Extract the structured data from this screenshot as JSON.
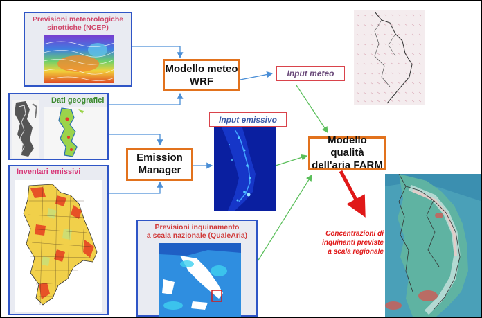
{
  "panels": {
    "ncep_title": "Previsioni meteorologiche\nsinottiche (NCEP)",
    "geo_title": "Dati geografici",
    "inventory_title": "Inventari emissivi",
    "qualearia_title": "Previsioni inquinamento\na scala nazionale (QualeAria)"
  },
  "boxes": {
    "wrf": "Modello meteo\nWRF",
    "emission_manager": "Emission\nManager",
    "farm": "Modello qualità\ndell'aria FARM"
  },
  "labels": {
    "input_meteo": "Input meteo",
    "input_emissivo": "Input emissivo",
    "concentrations": "Concentrazioni di\ninquinanti previste\na scala regionale"
  },
  "colors": {
    "panel_border": "#2f55c6",
    "box_border": "#e2721d",
    "label_border": "#d9434b",
    "arrow_blue": "#4a8ed6",
    "arrow_green": "#5bbf5b",
    "arrow_red": "#e01818"
  }
}
